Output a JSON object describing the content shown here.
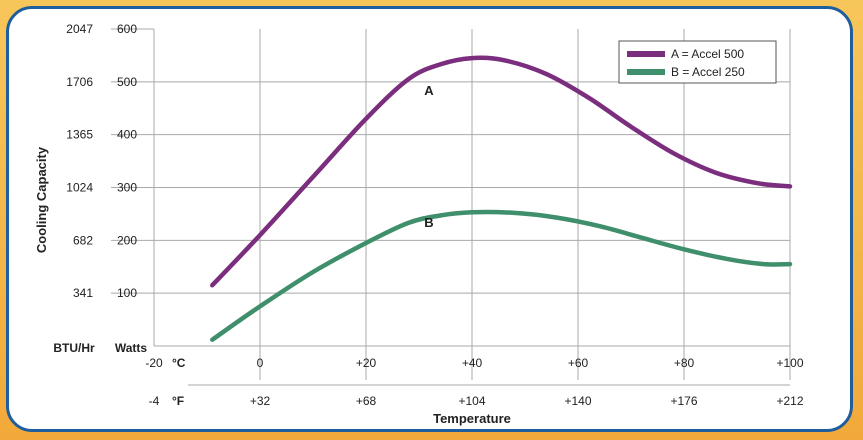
{
  "chart_data": {
    "type": "line",
    "title": "",
    "xlabel": "Temperature",
    "ylabel": "Cooling Capacity",
    "x_unit_celsius": "°C",
    "x_unit_fahrenheit": "°F",
    "y_unit_btu": "BTU/Hr",
    "y_unit_watts": "Watts",
    "xlim": [
      -20,
      100
    ],
    "ylim": [
      0,
      600
    ],
    "x_ticks_celsius": [
      "-20",
      "0",
      "+20",
      "+40",
      "+60",
      "+80",
      "+100"
    ],
    "x_ticks_fahrenheit": [
      "-4",
      "+32",
      "+68",
      "+104",
      "+140",
      "+176",
      "+212"
    ],
    "y_ticks_watts": [
      "100",
      "200",
      "300",
      "400",
      "500",
      "600"
    ],
    "y_ticks_btu": [
      "341",
      "682",
      "1024",
      "1365",
      "1706",
      "2047"
    ],
    "grid": true,
    "legend_position": "top-right",
    "series": [
      {
        "name": "A = Accel 500",
        "label": "A",
        "color": "#7b2e7e",
        "points": [
          [
            -9,
            115
          ],
          [
            0,
            210
          ],
          [
            10,
            320
          ],
          [
            20,
            430
          ],
          [
            28,
            505
          ],
          [
            34,
            533
          ],
          [
            40,
            545
          ],
          [
            46,
            541
          ],
          [
            54,
            515
          ],
          [
            62,
            470
          ],
          [
            70,
            415
          ],
          [
            78,
            365
          ],
          [
            86,
            328
          ],
          [
            94,
            308
          ],
          [
            100,
            302
          ]
        ]
      },
      {
        "name": "B = Accel 250",
        "label": "B",
        "color": "#3f8f6d",
        "points": [
          [
            -9,
            12
          ],
          [
            0,
            75
          ],
          [
            10,
            140
          ],
          [
            20,
            195
          ],
          [
            28,
            233
          ],
          [
            34,
            247
          ],
          [
            40,
            253
          ],
          [
            48,
            252
          ],
          [
            56,
            243
          ],
          [
            64,
            227
          ],
          [
            72,
            205
          ],
          [
            80,
            183
          ],
          [
            88,
            165
          ],
          [
            95,
            155
          ],
          [
            100,
            155
          ]
        ]
      }
    ]
  }
}
